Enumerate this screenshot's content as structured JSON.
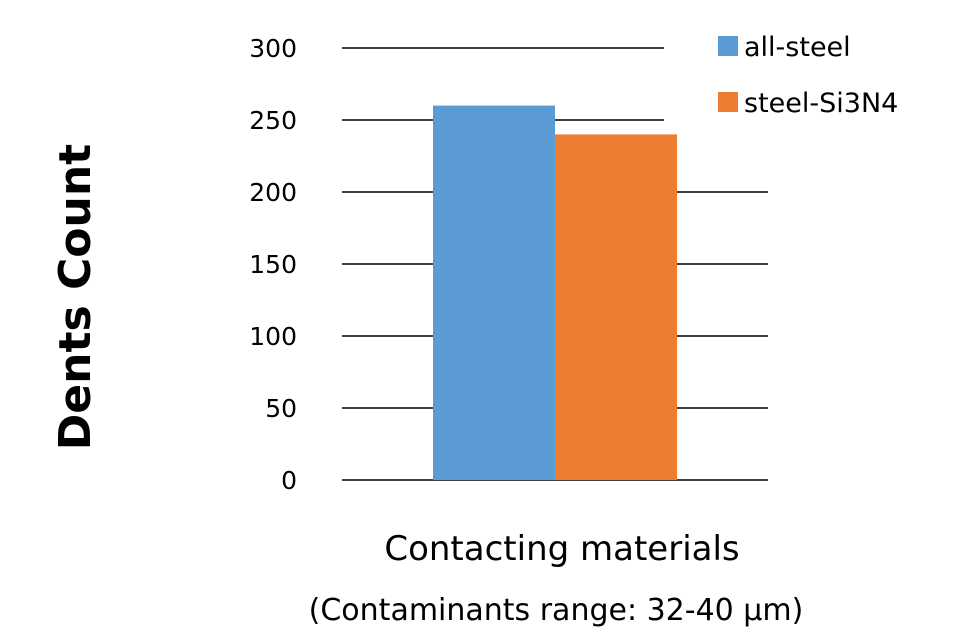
{
  "chart_data": {
    "type": "bar",
    "title": "",
    "xlabel": "Contacting materials",
    "xlabel_sub": "(Contaminants range: 32-40 μm)",
    "ylabel": "Dents Count",
    "ylim": [
      0,
      300
    ],
    "yticks": [
      "0",
      "50",
      "100",
      "150",
      "200",
      "250",
      "300"
    ],
    "grid": true,
    "legend_position": "top-right",
    "categories": [
      ""
    ],
    "series": [
      {
        "name": "all-steel",
        "values": [
          260
        ],
        "color": "#5b9bd5"
      },
      {
        "name": "steel-Si3N4",
        "values": [
          240
        ],
        "color": "#ed7d31"
      }
    ]
  }
}
